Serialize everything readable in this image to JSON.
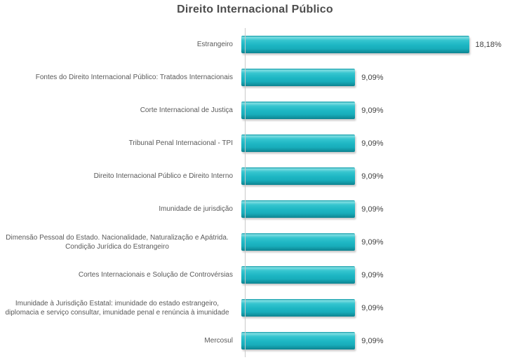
{
  "page": {
    "background": "#ffffff"
  },
  "chart_data": {
    "type": "bar",
    "orientation": "horizontal",
    "title": "Direito Internacional Público",
    "categories": [
      "Estrangeiro",
      "Fontes do Direito Internacional Público: Tratados Internacionais",
      "Corte Internacional de Justiça",
      "Tribunal Penal Internacional - TPI",
      "Direito Internacional Público e Direito Interno",
      "Imunidade de jurisdição",
      "Dimensão Pessoal do Estado. Nacionalidade, Naturalização e Apátrida. Condição Jurídica do Estrangeiro",
      "Cortes Internacionais e Solução de Controvérsias",
      "Imunidade à Jurisdição Estatal: imunidade do estado estrangeiro, diplomacia e serviço consultar, imunidade penal e renúncia à imunidade",
      "Mercosul"
    ],
    "values": [
      18.18,
      9.09,
      9.09,
      9.09,
      9.09,
      9.09,
      9.09,
      9.09,
      9.09,
      9.09
    ],
    "value_labels": [
      "18,18%",
      "9,09%",
      "9,09%",
      "9,09%",
      "9,09%",
      "9,09%",
      "9,09%",
      "9,09%",
      "9,09%",
      "9,09%"
    ],
    "xlim": [
      0,
      20
    ],
    "grid": false,
    "legend": false,
    "bar_color": "#1db6c3",
    "axis_color": "#c9c9c9",
    "title_color": "#4d4d4d",
    "label_color": "#595959",
    "value_color": "#3f3f3f"
  }
}
